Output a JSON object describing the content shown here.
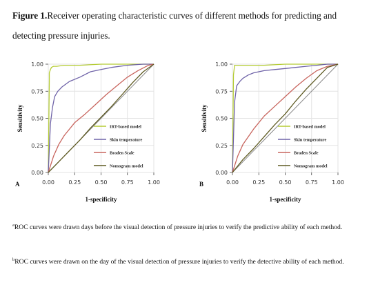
{
  "caption": {
    "label": "Figure 1.",
    "text": "Receiver operating characteristic curves of different methods for predicting and detecting pressure injuries."
  },
  "footnotes": [
    {
      "mark": "a",
      "text": "ROC curves were drawn days before the visual detection of pressure injuries to verify the predictive ability of each method."
    },
    {
      "mark": "b",
      "text": "ROC curves were drawn on the day of the visual detection of pressure injuries to verify the detective ability of each method."
    }
  ],
  "colors": {
    "irt": "#b5cc34",
    "skin": "#6f63a8",
    "braden": "#c8655e",
    "nomogram": "#5e5a22",
    "diagonal": "#888888",
    "grid": "#e3e3e3",
    "frame": "#bdbdbd"
  },
  "chart_data": [
    {
      "type": "line",
      "panel_label": "A",
      "xlabel": "1-specificity",
      "ylabel": "Sensitivity",
      "xlim": [
        0,
        1
      ],
      "ylim": [
        0,
        1
      ],
      "xticks": [
        "0.00",
        "0.25",
        "0.50",
        "0.75",
        "1.00"
      ],
      "yticks": [
        "0.00",
        "0.25",
        "0.50",
        "0.75",
        "1.00"
      ],
      "grid": true,
      "legend_position": "bottom-right",
      "series": [
        {
          "name": "IRT-based model",
          "color_key": "irt",
          "x": [
            0,
            0.01,
            0.01,
            0.02,
            0.03,
            0.05,
            0.08,
            0.15,
            0.3,
            0.5,
            0.7,
            0.9,
            1.0
          ],
          "y": [
            0,
            0.85,
            0.92,
            0.95,
            0.97,
            0.98,
            0.98,
            0.99,
            0.99,
            1.0,
            1.0,
            1.0,
            1.0
          ]
        },
        {
          "name": "Skin temperature",
          "color_key": "skin",
          "x": [
            0,
            0.02,
            0.04,
            0.06,
            0.09,
            0.13,
            0.2,
            0.3,
            0.4,
            0.5,
            0.6,
            0.75,
            0.9,
            1.0
          ],
          "y": [
            0,
            0.45,
            0.6,
            0.7,
            0.75,
            0.79,
            0.84,
            0.88,
            0.93,
            0.95,
            0.97,
            0.99,
            1.0,
            1.0
          ]
        },
        {
          "name": "Braden Scale",
          "color_key": "braden",
          "x": [
            0,
            0.05,
            0.1,
            0.15,
            0.25,
            0.35,
            0.45,
            0.55,
            0.65,
            0.75,
            0.85,
            0.95,
            1.0
          ],
          "y": [
            0,
            0.15,
            0.26,
            0.34,
            0.46,
            0.54,
            0.63,
            0.72,
            0.8,
            0.88,
            0.94,
            0.99,
            1.0
          ]
        },
        {
          "name": "Nomogram model",
          "color_key": "nomogram",
          "x": [
            0,
            0.1,
            0.2,
            0.3,
            0.4,
            0.5,
            0.6,
            0.7,
            0.8,
            0.9,
            1.0
          ],
          "y": [
            0,
            0.1,
            0.2,
            0.3,
            0.41,
            0.51,
            0.61,
            0.72,
            0.83,
            0.93,
            1.0
          ]
        }
      ]
    },
    {
      "type": "line",
      "panel_label": "B",
      "xlabel": "1-specificity",
      "ylabel": "Sensitivity",
      "xlim": [
        0,
        1
      ],
      "ylim": [
        0,
        1
      ],
      "xticks": [
        "0.00",
        "0.25",
        "0.50",
        "0.75",
        "1.00"
      ],
      "yticks": [
        "0.00",
        "0.25",
        "0.50",
        "0.75",
        "1.00"
      ],
      "grid": true,
      "legend_position": "bottom-right",
      "series": [
        {
          "name": "IRT-based model",
          "color_key": "irt",
          "x": [
            0,
            0.01,
            0.02,
            0.1,
            0.3,
            0.5,
            0.7,
            0.9,
            1.0
          ],
          "y": [
            0,
            0.9,
            0.99,
            0.99,
            0.99,
            1.0,
            1.0,
            1.0,
            1.0
          ]
        },
        {
          "name": "Skin temperature",
          "color_key": "skin",
          "x": [
            0,
            0.02,
            0.04,
            0.07,
            0.1,
            0.15,
            0.2,
            0.3,
            0.4,
            0.5,
            0.6,
            0.7,
            0.8,
            0.9,
            1.0
          ],
          "y": [
            0,
            0.65,
            0.8,
            0.84,
            0.87,
            0.9,
            0.92,
            0.94,
            0.95,
            0.96,
            0.97,
            0.98,
            0.99,
            1.0,
            1.0
          ]
        },
        {
          "name": "Braden Scale",
          "color_key": "braden",
          "x": [
            0,
            0.05,
            0.1,
            0.2,
            0.3,
            0.4,
            0.5,
            0.6,
            0.7,
            0.8,
            0.9,
            1.0
          ],
          "y": [
            0,
            0.15,
            0.26,
            0.4,
            0.52,
            0.61,
            0.7,
            0.79,
            0.87,
            0.94,
            0.98,
            1.0
          ]
        },
        {
          "name": "Nomogram model",
          "color_key": "nomogram",
          "x": [
            0,
            0.1,
            0.2,
            0.3,
            0.4,
            0.5,
            0.6,
            0.7,
            0.8,
            0.9,
            1.0
          ],
          "y": [
            0,
            0.12,
            0.22,
            0.33,
            0.44,
            0.54,
            0.66,
            0.77,
            0.87,
            0.97,
            1.0
          ]
        }
      ]
    }
  ]
}
